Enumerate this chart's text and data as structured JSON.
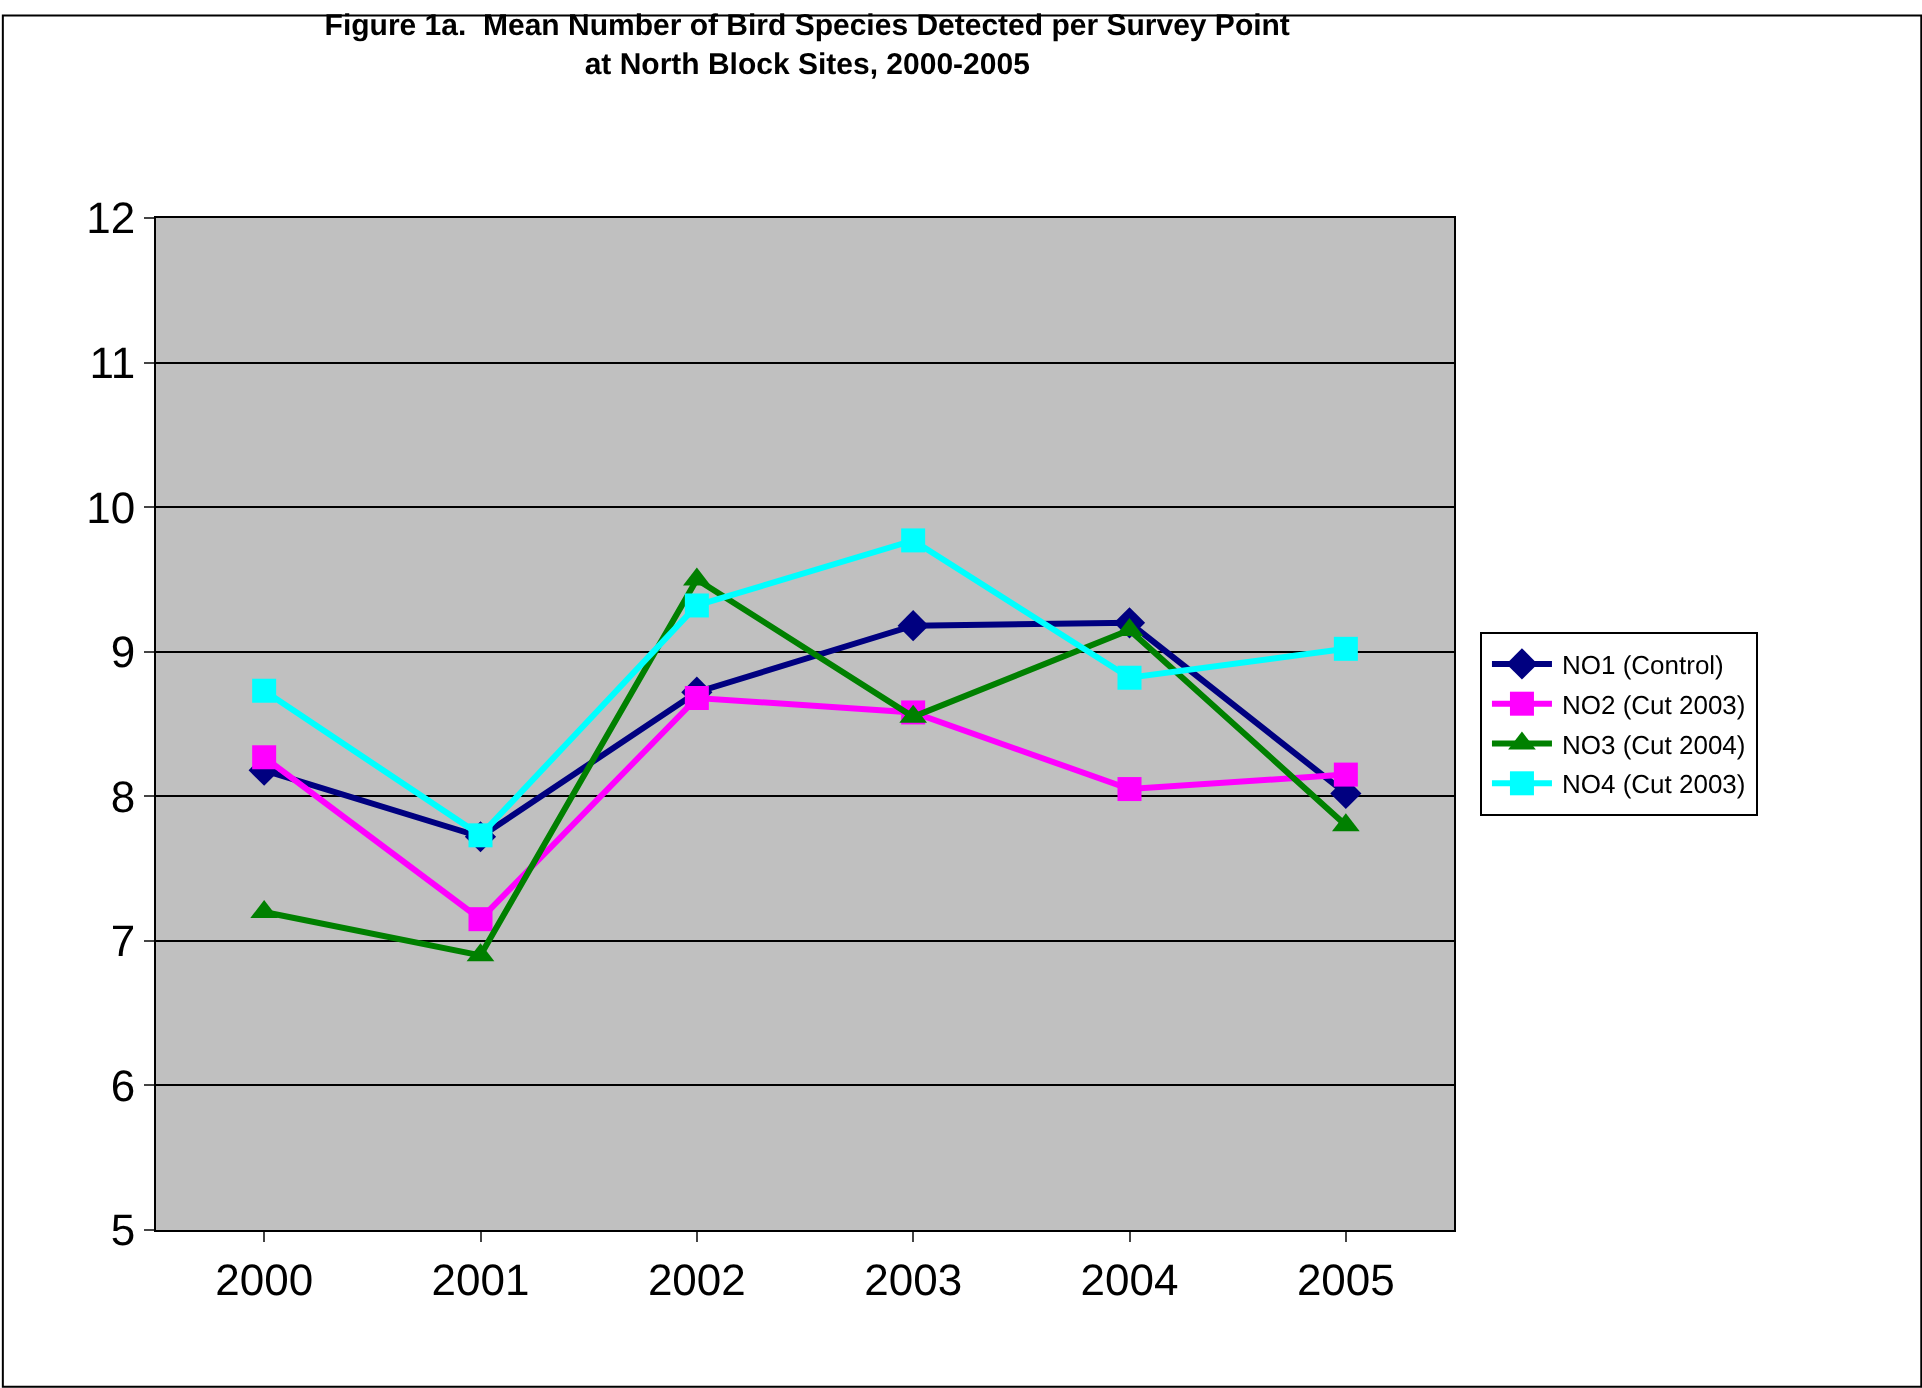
{
  "chart_data": {
    "type": "line",
    "title": "Figure 1a.  Mean Number of Bird Species Detected per Survey Point at North Block Sites, 2000-2005",
    "categories": [
      "2000",
      "2001",
      "2002",
      "2003",
      "2004",
      "2005"
    ],
    "series": [
      {
        "name": "NO1 (Control)",
        "color": "#000080",
        "marker": "diamond",
        "values": [
          8.18,
          7.72,
          8.72,
          9.18,
          9.2,
          8.02
        ]
      },
      {
        "name": "NO2 (Cut 2003)",
        "color": "#ff00ff",
        "marker": "square",
        "values": [
          8.27,
          7.15,
          8.68,
          8.58,
          8.05,
          8.15
        ]
      },
      {
        "name": "NO3 (Cut 2004)",
        "color": "#008000",
        "marker": "triangle",
        "values": [
          7.2,
          6.9,
          9.5,
          8.55,
          9.15,
          7.8
        ]
      },
      {
        "name": "NO4 (Cut 2003)",
        "color": "#00ffff",
        "marker": "square",
        "values": [
          8.73,
          7.73,
          9.32,
          9.77,
          8.82,
          9.02
        ]
      }
    ],
    "ylim": [
      5,
      12
    ],
    "yticks": [
      5,
      6,
      7,
      8,
      9,
      10,
      11,
      12
    ],
    "grid": "y",
    "legend": "right",
    "line_style": "solid"
  }
}
